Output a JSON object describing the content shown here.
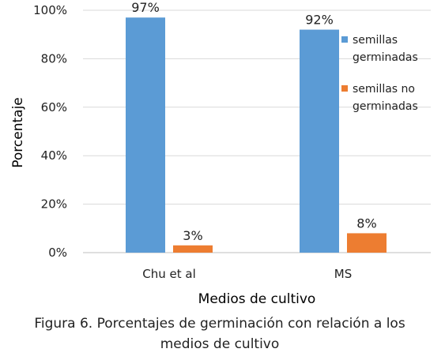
{
  "chart_data": {
    "type": "bar",
    "categories": [
      "Chu et al",
      "MS"
    ],
    "series": [
      {
        "name": "semillas germinadas",
        "values": [
          97,
          92
        ],
        "color": "#5B9BD5"
      },
      {
        "name": "semillas no germinadas",
        "values": [
          3,
          8
        ],
        "color": "#ED7D31"
      }
    ],
    "data_labels": [
      [
        "97%",
        "92%"
      ],
      [
        "3%",
        "8%"
      ]
    ],
    "y_ticks": [
      "0%",
      "20%",
      "40%",
      "60%",
      "80%",
      "100%"
    ],
    "ylim": [
      0,
      100
    ],
    "xlabel": "Medios de cultivo",
    "ylabel": "Porcentaje",
    "grid": true,
    "legend_position": "right"
  },
  "legend": {
    "series_0_lines": [
      "semillas",
      "germinadas"
    ],
    "series_1_lines": [
      "semillas no",
      "germinadas"
    ]
  },
  "caption": {
    "lines": [
      "Figura 6. Porcentajes de germinación con relación a los",
      "medios de cultivo"
    ]
  }
}
